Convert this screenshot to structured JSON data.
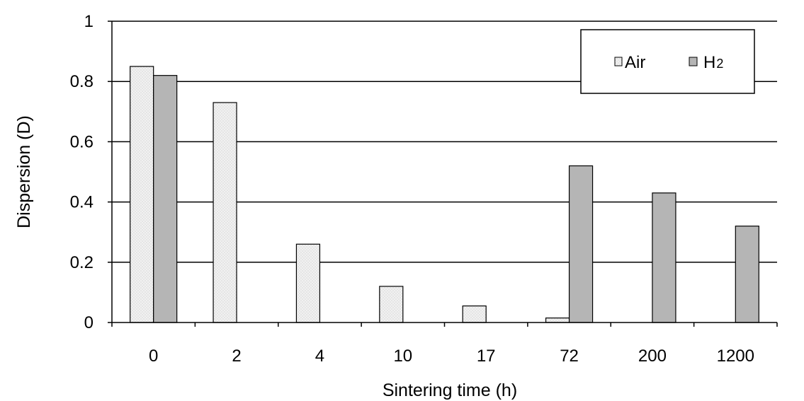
{
  "chart_data": {
    "type": "bar",
    "categories": [
      "0",
      "2",
      "4",
      "10",
      "17",
      "72",
      "200",
      "1200"
    ],
    "series": [
      {
        "name": "Air",
        "values": [
          0.85,
          0.73,
          0.26,
          0.12,
          0.055,
          0.015,
          0.0,
          0.0
        ],
        "color": "#efefef"
      },
      {
        "name": "H2",
        "values": [
          0.82,
          0.0,
          0.0,
          0.0,
          0.0,
          0.52,
          0.43,
          0.32
        ],
        "color": "#b5b5b5"
      }
    ],
    "title": "",
    "xlabel": "Sintering time (h)",
    "ylabel": "Dispersion (D)",
    "ylim": [
      0,
      1
    ],
    "yticks": [
      "0",
      "0.2",
      "0.4",
      "0.6",
      "0.8",
      "1"
    ],
    "grid": true,
    "legend_position": "top-right",
    "legend_labels": {
      "air": "Air",
      "h2_base": "H",
      "h2_sub": "2"
    }
  }
}
